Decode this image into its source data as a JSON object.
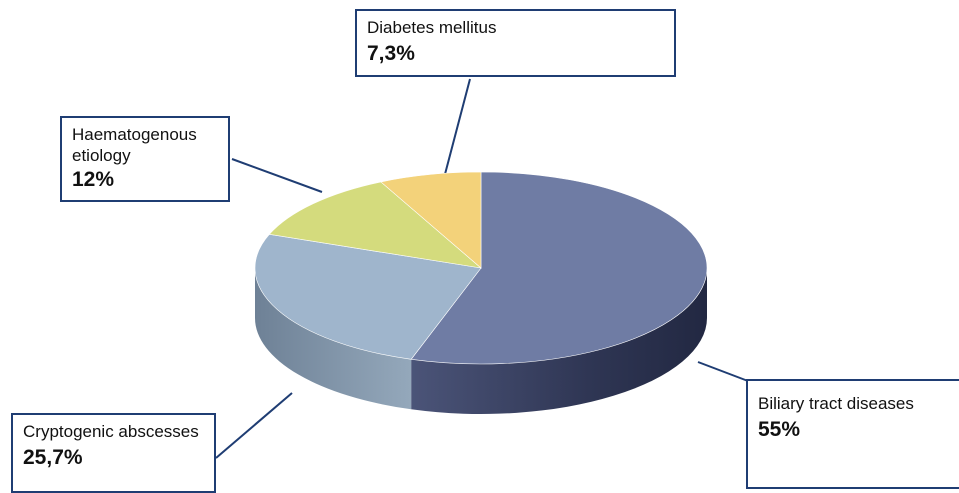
{
  "chart_data": {
    "type": "pie",
    "style": "3d",
    "slices": [
      {
        "label": "Biliary tract diseases",
        "value": 55,
        "display": "55%",
        "color": "#6f7ca4"
      },
      {
        "label": "Cryptogenic abscesses",
        "value": 25.7,
        "display": "25,7%",
        "color": "#9fb5cc"
      },
      {
        "label": "Haematogenous etiology",
        "value": 12,
        "display": "12%",
        "color": "#d4db7d"
      },
      {
        "label": "Diabetes mellitus",
        "value": 7.3,
        "display": "7,3%",
        "color": "#f3d27a"
      }
    ],
    "callout_border_color": "#1f3d73"
  },
  "labels": {
    "diabetes": {
      "name": "Diabetes mellitus",
      "pct": "7,3%"
    },
    "haemato": {
      "name": "Haematogenous etiology",
      "pct": "12%"
    },
    "biliary": {
      "name": "Biliary tract diseases",
      "pct": "55%"
    },
    "crypto": {
      "name": "Cryptogenic abscesses",
      "pct": "25,7%"
    }
  }
}
